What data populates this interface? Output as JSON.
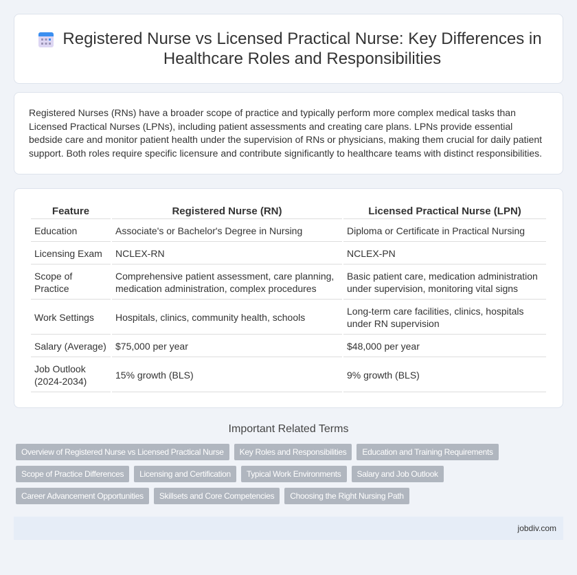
{
  "header": {
    "title": "Registered Nurse vs Licensed Practical Nurse: Key Differences in Healthcare Roles and Responsibilities",
    "icon": "calendar-icon"
  },
  "intro": "Registered Nurses (RNs) have a broader scope of practice and typically perform more complex medical tasks than Licensed Practical Nurses (LPNs), including patient assessments and creating care plans. LPNs provide essential bedside care and monitor patient health under the supervision of RNs or physicians, making them crucial for daily patient support. Both roles require specific licensure and contribute significantly to healthcare teams with distinct responsibilities.",
  "table": {
    "headers": [
      "Feature",
      "Registered Nurse (RN)",
      "Licensed Practical Nurse (LPN)"
    ],
    "rows": [
      [
        "Education",
        "Associate's or Bachelor's Degree in Nursing",
        "Diploma or Certificate in Practical Nursing"
      ],
      [
        "Licensing Exam",
        "NCLEX-RN",
        "NCLEX-PN"
      ],
      [
        "Scope of Practice",
        "Comprehensive patient assessment, care planning, medication administration, complex procedures",
        "Basic patient care, medication administration under supervision, monitoring vital signs"
      ],
      [
        "Work Settings",
        "Hospitals, clinics, community health, schools",
        "Long-term care facilities, clinics, hospitals under RN supervision"
      ],
      [
        "Salary (Average)",
        "$75,000 per year",
        "$48,000 per year"
      ],
      [
        "Job Outlook (2024-2034)",
        "15% growth (BLS)",
        "9% growth (BLS)"
      ]
    ]
  },
  "terms": {
    "title": "Important Related Terms",
    "items": [
      "Overview of Registered Nurse vs Licensed Practical Nurse",
      "Key Roles and Responsibilities",
      "Education and Training Requirements",
      "Scope of Practice Differences",
      "Licensing and Certification",
      "Typical Work Environments",
      "Salary and Job Outlook",
      "Career Advancement Opportunities",
      "Skillsets and Core Competencies",
      "Choosing the Right Nursing Path"
    ]
  },
  "footer": {
    "site": "jobdiv.com"
  }
}
